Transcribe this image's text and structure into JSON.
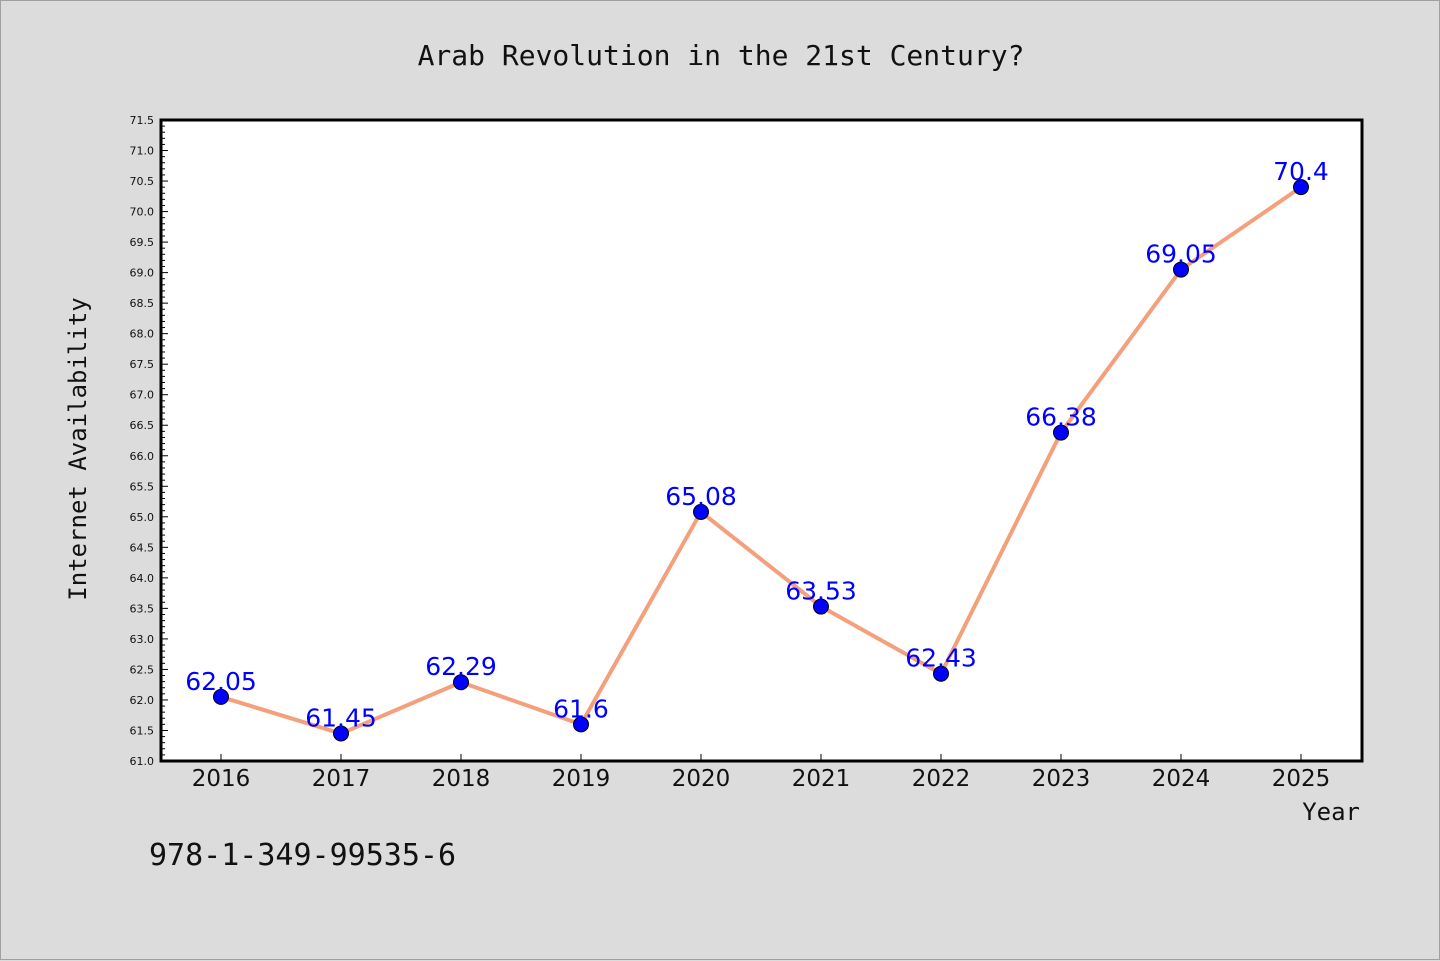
{
  "chart_data": {
    "type": "line",
    "title": "Arab Revolution in the 21st Century?",
    "xlabel": "Year",
    "ylabel": "Internet Availability",
    "categories": [
      "2016",
      "2017",
      "2018",
      "2019",
      "2020",
      "2021",
      "2022",
      "2023",
      "2024",
      "2025"
    ],
    "series": [
      {
        "values": [
          62.05,
          61.45,
          62.29,
          61.6,
          65.08,
          63.53,
          62.43,
          66.38,
          69.05,
          70.4
        ],
        "data_labels": [
          "62.05",
          "61.45",
          "62.29",
          "61.6",
          "65.08",
          "63.53",
          "62.43",
          "66.38",
          "69.05",
          "70.4"
        ],
        "line_color": "#f4a07c",
        "marker_color": "#0000ff"
      }
    ],
    "ylim": [
      61.0,
      71.5
    ],
    "yticks": [
      "61.0",
      "61.5",
      "62.0",
      "62.5",
      "63.0",
      "63.5",
      "64.0",
      "64.5",
      "65.0",
      "65.5",
      "66.0",
      "66.5",
      "67.0",
      "67.5",
      "68.0",
      "68.5",
      "69.0",
      "69.5",
      "70.0",
      "70.5",
      "71.0",
      "71.5"
    ],
    "grid": false,
    "legend": "none",
    "colors": {
      "figure_background": "#dcdcdc",
      "plot_background": "#ffffff",
      "data_label": "#0000ff"
    }
  },
  "footnote": "978-1-349-99535-6"
}
